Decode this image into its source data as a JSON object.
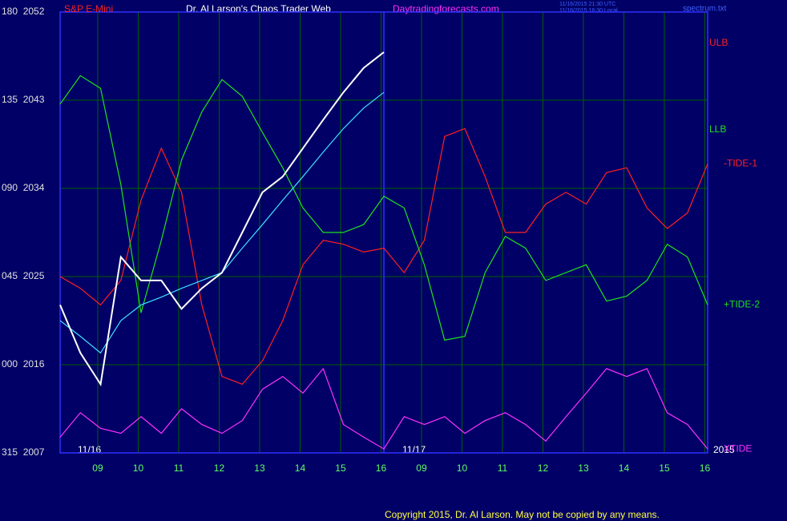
{
  "chart_data": {
    "type": "line",
    "title": "Dr. Al Larson's Chaos Trader Web",
    "site": "Daytradingforecasts.com",
    "timestamps": [
      "11/16/2015 21:30 UTC",
      "11/16/2015 16:30 Local"
    ],
    "file": "spectrum.txt",
    "band_labels": [
      {
        "text": "ULB",
        "color": "#ff2020"
      },
      {
        "text": "LLB",
        "color": "#20e020"
      }
    ],
    "date_labels": [
      "11/16",
      "11/17",
      "2015"
    ],
    "copyright": "Copyright 2015, Dr. Al Larson. May not be copied by any means.",
    "grid": true,
    "xlim": [
      0,
      16
    ],
    "xticks": [
      {
        "value": 0.93,
        "label": "09"
      },
      {
        "value": 1.93,
        "label": "10"
      },
      {
        "value": 2.93,
        "label": "11"
      },
      {
        "value": 3.93,
        "label": "12"
      },
      {
        "value": 4.93,
        "label": "13"
      },
      {
        "value": 5.93,
        "label": "14"
      },
      {
        "value": 6.93,
        "label": "15"
      },
      {
        "value": 7.93,
        "label": "16"
      },
      {
        "value": 8.93,
        "label": "09"
      },
      {
        "value": 9.93,
        "label": "10"
      },
      {
        "value": 10.93,
        "label": "11"
      },
      {
        "value": 11.93,
        "label": "12"
      },
      {
        "value": 12.93,
        "label": "13"
      },
      {
        "value": 13.93,
        "label": "14"
      },
      {
        "value": 14.93,
        "label": "15"
      },
      {
        "value": 15.93,
        "label": "16"
      }
    ],
    "ylim": [
      2007,
      2052
    ],
    "yticks": [
      {
        "value": 2052,
        "label": "180  2052"
      },
      {
        "value": 2043,
        "label": "135  2043"
      },
      {
        "value": 2034,
        "label": "090  2034"
      },
      {
        "value": 2025,
        "label": "045  2025"
      },
      {
        "value": 2016,
        "label": "000  2016"
      },
      {
        "value": 2007,
        "label": "315  2007"
      }
    ],
    "x": [
      0,
      0.5,
      1,
      1.5,
      2,
      2.5,
      3,
      3.5,
      4,
      4.5,
      5,
      5.5,
      6,
      6.5,
      7,
      7.5,
      8,
      8.5,
      9,
      9.5,
      10,
      10.5,
      11,
      11.5,
      12,
      12.5,
      13,
      13.5,
      14,
      14.5,
      15,
      15.5,
      16
    ],
    "series": [
      {
        "name": "-TIDE-1",
        "color": "#ff2020",
        "values": [
          2025.0,
          2023.8,
          2022.1,
          2024.6,
          2032.8,
          2038.1,
          2033.6,
          2022.1,
          2014.8,
          2014.0,
          2016.4,
          2020.5,
          2026.2,
          2028.7,
          2028.3,
          2027.5,
          2027.9,
          2025.4,
          2028.7,
          2039.3,
          2040.1,
          2035.2,
          2029.5,
          2029.5,
          2032.4,
          2033.6,
          2032.4,
          2035.6,
          2036.1,
          2032.0,
          2029.9,
          2031.5,
          2036.5
        ]
      },
      {
        "name": "+TIDE-2",
        "color": "#20e020",
        "values": [
          2042.6,
          2045.5,
          2044.2,
          2034.4,
          2021.3,
          2028.7,
          2036.9,
          2041.8,
          2045.1,
          2043.4,
          2039.7,
          2036.1,
          2032.0,
          2029.5,
          2029.5,
          2030.3,
          2033.2,
          2032.0,
          2026.2,
          2018.5,
          2018.9,
          2025.4,
          2029.1,
          2027.9,
          2024.6,
          2025.4,
          2026.2,
          2022.5,
          2023.0,
          2024.6,
          2028.3,
          2027.0,
          2022.1
        ]
      },
      {
        "name": "XTIDE",
        "color": "#ff30ff",
        "values": [
          2008.6,
          2011.1,
          2009.5,
          2009.0,
          2010.7,
          2009.0,
          2011.5,
          2009.9,
          2009.0,
          2010.3,
          2013.5,
          2014.8,
          2013.1,
          2015.6,
          2009.9,
          2008.6,
          2007.4,
          2010.7,
          2009.9,
          2010.7,
          2009.0,
          2010.3,
          2011.1,
          2009.9,
          2008.2,
          2010.7,
          2013.1,
          2015.6,
          2014.8,
          2015.6,
          2011.1,
          2009.9,
          2007.4
        ]
      },
      {
        "color": "#40e0ff",
        "values": [
          2020.5,
          2018.9,
          2017.2,
          2020.5,
          2022.1,
          2022.9,
          2023.8,
          2024.6,
          2025.4,
          2027.9,
          2030.3,
          2032.8,
          2035.2,
          2037.7,
          2040.1,
          2042.2,
          2043.8,
          null,
          null,
          null,
          null,
          null,
          null,
          null,
          null,
          null,
          null,
          null,
          null,
          null,
          null,
          null,
          null
        ]
      },
      {
        "name": "S&P E-Mini",
        "color": "#ffffff",
        "values": [
          2022.1,
          2017.2,
          2014.0,
          2027.0,
          2024.6,
          2024.6,
          2021.7,
          2023.8,
          2025.4,
          2029.5,
          2033.6,
          2035.2,
          2038.1,
          2041.0,
          2043.8,
          2046.3,
          2047.9,
          null,
          null,
          null,
          null,
          null,
          null,
          null,
          null,
          null,
          null,
          null,
          null,
          null,
          null,
          null,
          null
        ]
      }
    ]
  }
}
